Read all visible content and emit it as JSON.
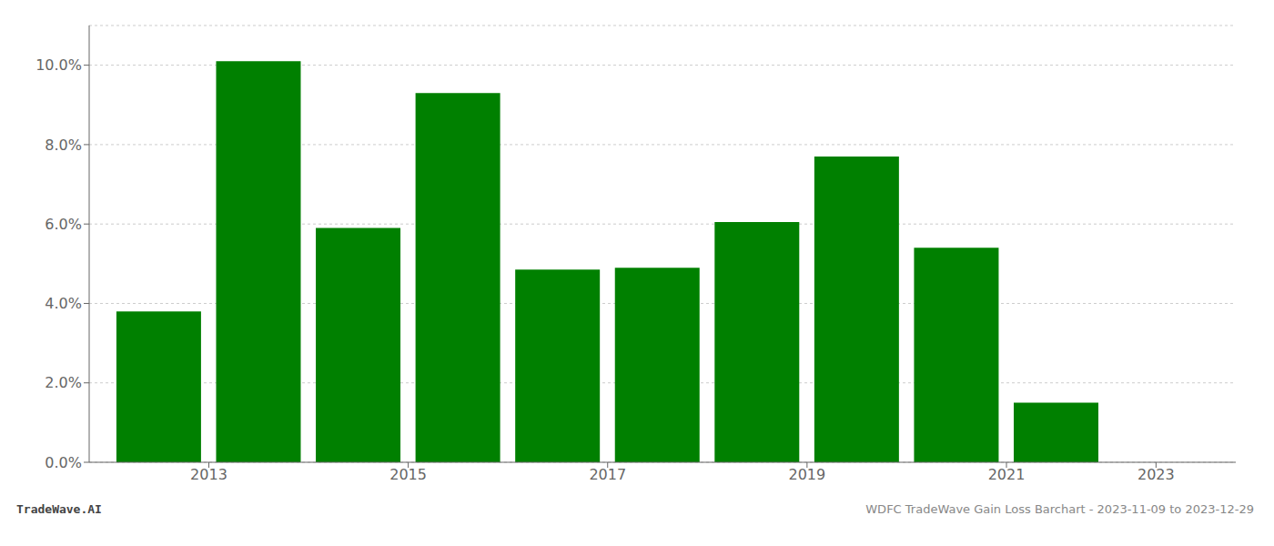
{
  "chart_data": {
    "type": "bar",
    "x": [
      2013,
      2014,
      2015,
      2016,
      2017,
      2018,
      2019,
      2020,
      2021,
      2022,
      2023
    ],
    "values": [
      0.038,
      0.101,
      0.059,
      0.093,
      0.0485,
      0.049,
      0.0605,
      0.077,
      0.054,
      0.015,
      0.0
    ],
    "color": "#008000",
    "xlim": [
      2012.3,
      2023.8
    ],
    "xticks": [
      {
        "value": 2013.5,
        "label": "2013"
      },
      {
        "value": 2015.5,
        "label": "2015"
      },
      {
        "value": 2017.5,
        "label": "2017"
      },
      {
        "value": 2019.5,
        "label": "2019"
      },
      {
        "value": 2021.5,
        "label": "2021"
      },
      2023
    ],
    "ylim": [
      0,
      0.11
    ],
    "yticks": [
      {
        "value": 0.0,
        "label": "0.0%"
      },
      {
        "value": 0.02,
        "label": "2.0%"
      },
      {
        "value": 0.04,
        "label": "4.0%"
      },
      {
        "value": 0.06,
        "label": "6.0%"
      },
      {
        "value": 0.08,
        "label": "8.0%"
      },
      {
        "value": 0.1,
        "label": "10.0%"
      }
    ],
    "grid": true,
    "annotations": [
      "TradeWave.AI",
      "WDFC TradeWave Gain Loss Barchart - 2023-11-09 to 2023-12-29"
    ]
  }
}
